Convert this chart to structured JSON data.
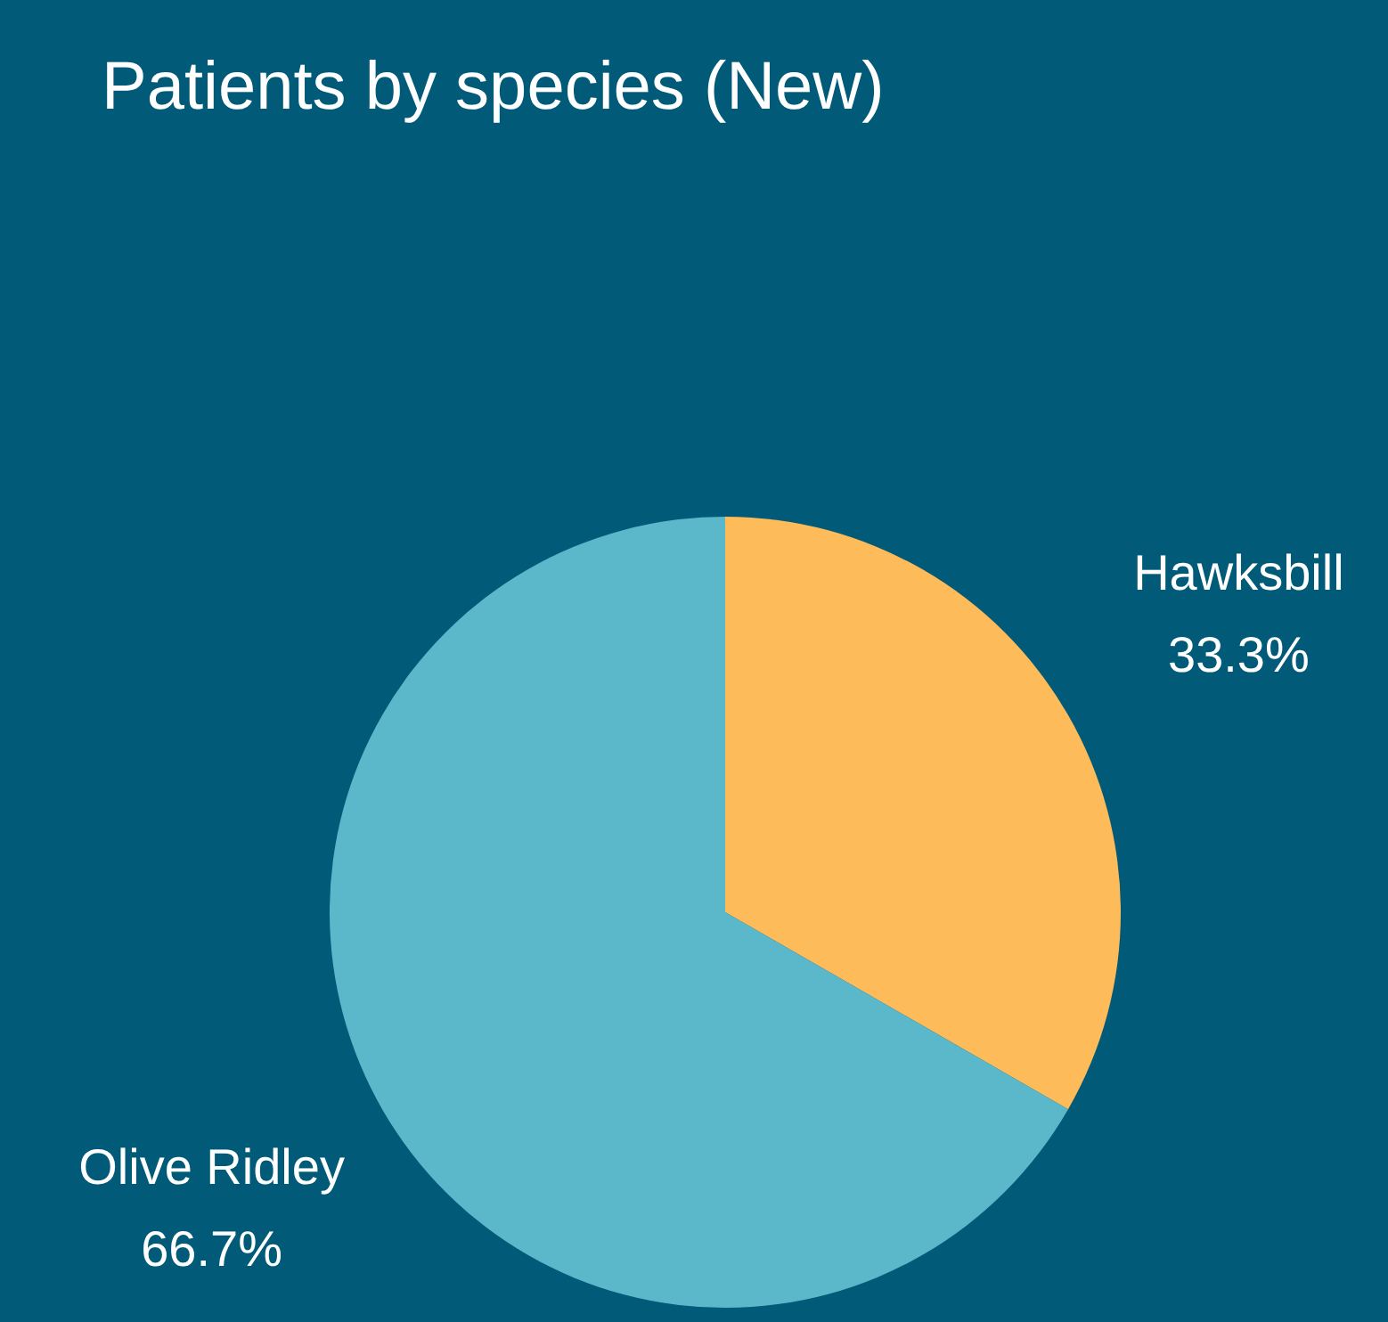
{
  "chart_data": {
    "type": "pie",
    "title": "Patients by species (New)",
    "categories": [
      "Hawksbill",
      "Olive Ridley"
    ],
    "values": [
      33.3,
      66.7
    ],
    "colors": [
      "#fdbb5a",
      "#5bb8cb"
    ],
    "value_labels": [
      "33.3%",
      "66.7%"
    ],
    "legend": false
  }
}
